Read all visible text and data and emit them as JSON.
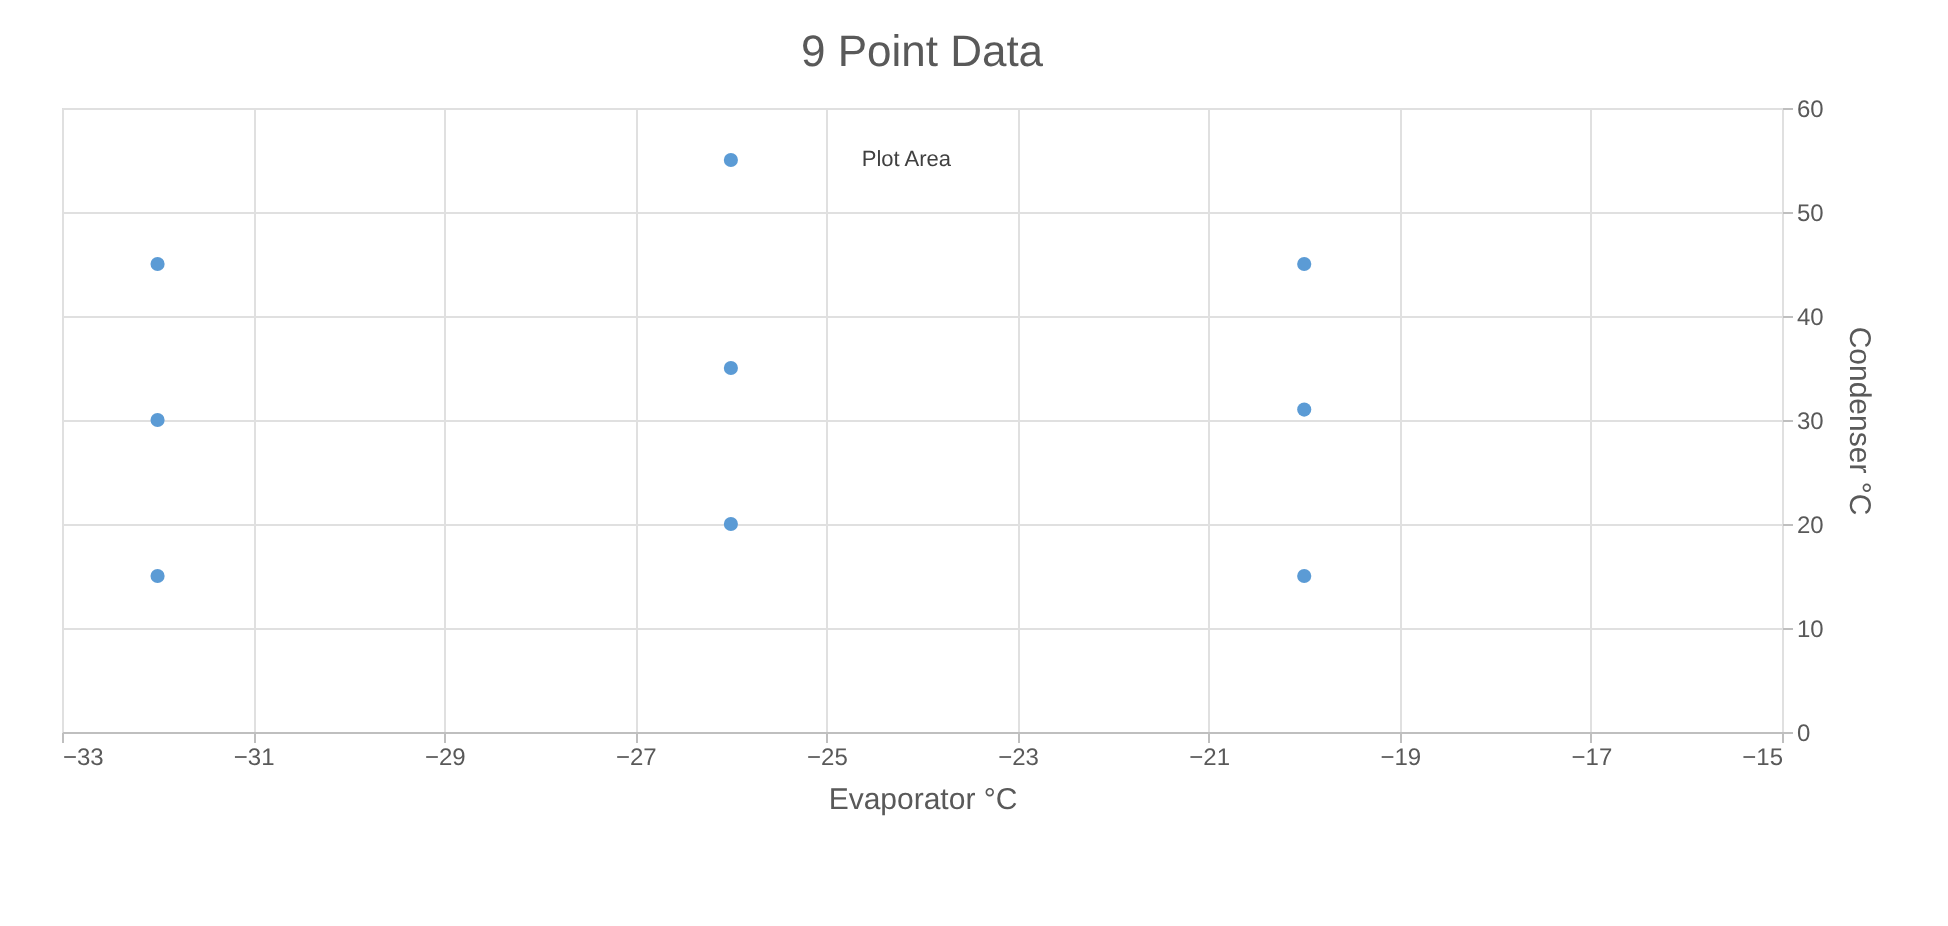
{
  "chart_data": {
    "type": "scatter",
    "title": "9 Point Data",
    "xlabel": "Evaporator °C",
    "ylabel": "Condenser °C",
    "x": [
      -32,
      -32,
      -32,
      -26,
      -26,
      -26,
      -20,
      -20,
      -20
    ],
    "series": [
      {
        "color": "#5b9bd5",
        "values": [
          45,
          30,
          15,
          55,
          35,
          20,
          45,
          31,
          15
        ]
      }
    ],
    "xlim": [
      -33,
      -15
    ],
    "xticks": [
      -33,
      -31,
      -29,
      -27,
      -25,
      -23,
      -21,
      -19,
      -17,
      -15
    ],
    "ylim": [
      0,
      60
    ],
    "yticks": [
      0,
      10,
      20,
      30,
      40,
      50,
      60
    ],
    "grid": true,
    "marker": "circle",
    "annotations": [
      "Plot Area"
    ]
  }
}
